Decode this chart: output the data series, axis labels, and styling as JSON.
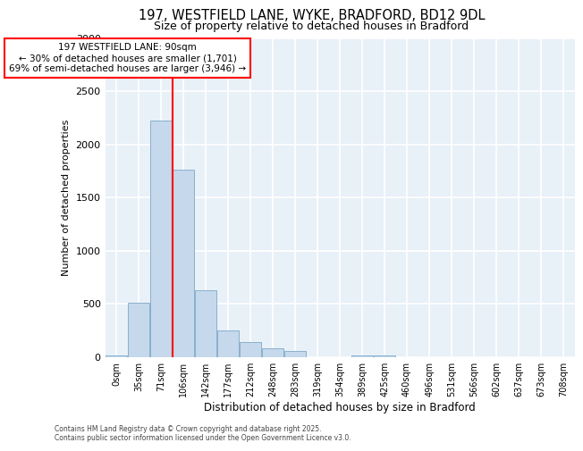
{
  "title_line1": "197, WESTFIELD LANE, WYKE, BRADFORD, BD12 9DL",
  "title_line2": "Size of property relative to detached houses in Bradford",
  "xlabel": "Distribution of detached houses by size in Bradford",
  "ylabel": "Number of detached properties",
  "categories": [
    "0sqm",
    "35sqm",
    "71sqm",
    "106sqm",
    "142sqm",
    "177sqm",
    "212sqm",
    "248sqm",
    "283sqm",
    "319sqm",
    "354sqm",
    "389sqm",
    "425sqm",
    "460sqm",
    "496sqm",
    "531sqm",
    "566sqm",
    "602sqm",
    "637sqm",
    "673sqm",
    "708sqm"
  ],
  "values": [
    15,
    510,
    2220,
    1760,
    630,
    255,
    140,
    80,
    60,
    0,
    0,
    20,
    15,
    0,
    0,
    0,
    0,
    0,
    0,
    0,
    0
  ],
  "bar_color": "#c5d8ec",
  "bar_edge_color": "#8ab0cc",
  "redline_x": 2.5,
  "annotation_title": "197 WESTFIELD LANE: 90sqm",
  "annotation_line2": "← 30% of detached houses are smaller (1,701)",
  "annotation_line3": "69% of semi-detached houses are larger (3,946) →",
  "ylim": [
    0,
    3000
  ],
  "yticks": [
    0,
    500,
    1000,
    1500,
    2000,
    2500,
    3000
  ],
  "background_color": "#ffffff",
  "plot_bg_color": "#e8f0f8",
  "grid_color": "#ffffff",
  "footnote_line1": "Contains HM Land Registry data © Crown copyright and database right 2025.",
  "footnote_line2": "Contains public sector information licensed under the Open Government Licence v3.0."
}
